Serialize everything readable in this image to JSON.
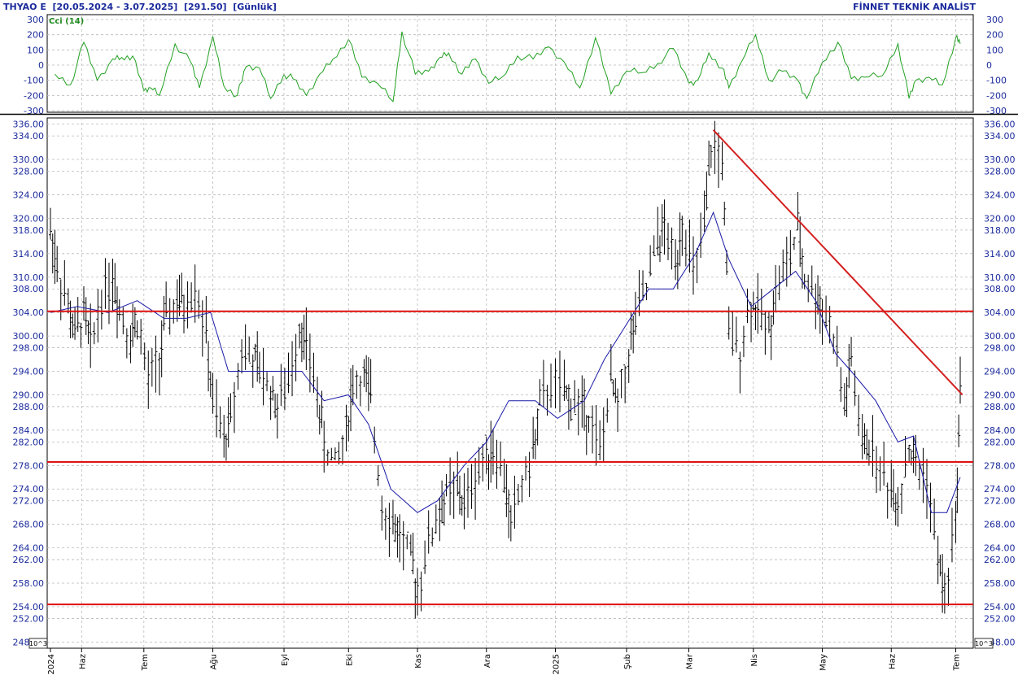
{
  "header": {
    "symbol": "THYAO E",
    "range": "[20.05.2024 - 3.07.2025]",
    "last": "[291.50]",
    "period": "[Günlük]",
    "vendor": "FİNNET TEKNİK ANALİST"
  },
  "colors": {
    "background": "#ffffff",
    "grid": "#b9b9b9",
    "axis_text": "#1a2a9c",
    "price_bars": "#000000",
    "moving_average": "#1a1aa8",
    "support_resistance": "#e01010",
    "trendline": "#d42020",
    "cci_line": "#22a022"
  },
  "chart_data": [
    {
      "type": "line",
      "title": "Cci (14)",
      "y_ticks": [
        "300",
        "200",
        "100",
        "0",
        "-100",
        "-200",
        "-300"
      ],
      "ylim": [
        -300,
        300
      ],
      "series": [
        {
          "name": "Cci (14)",
          "x": [
            "2024-05-22",
            "2024-05-29",
            "2024-06-04",
            "2024-06-10",
            "2024-06-17",
            "2024-06-21",
            "2024-06-26",
            "2024-07-01",
            "2024-07-04",
            "2024-07-08",
            "2024-07-15",
            "2024-07-22",
            "2024-07-26",
            "2024-08-01",
            "2024-08-06",
            "2024-08-12",
            "2024-08-16",
            "2024-08-22",
            "2024-08-27",
            "2024-09-02",
            "2024-09-06",
            "2024-09-12",
            "2024-09-18",
            "2024-09-24",
            "2024-10-01",
            "2024-10-07",
            "2024-10-14",
            "2024-10-21",
            "2024-10-25",
            "2024-10-31",
            "2024-11-06",
            "2024-11-11",
            "2024-11-15",
            "2024-11-21",
            "2024-11-27",
            "2024-12-03",
            "2024-12-09",
            "2024-12-16",
            "2024-12-23",
            "2024-12-30",
            "2025-01-06",
            "2025-01-13",
            "2025-01-20",
            "2025-01-27",
            "2025-02-03",
            "2025-02-10",
            "2025-02-17",
            "2025-02-24",
            "2025-03-03",
            "2025-03-07",
            "2025-03-12",
            "2025-03-18",
            "2025-03-21",
            "2025-03-27",
            "2025-04-02",
            "2025-04-08",
            "2025-04-14",
            "2025-04-21",
            "2025-04-25",
            "2025-05-02",
            "2025-05-09",
            "2025-05-15",
            "2025-05-21",
            "2025-05-29",
            "2025-06-05",
            "2025-06-10",
            "2025-06-13",
            "2025-06-19",
            "2025-06-25",
            "2025-07-01",
            "2025-07-03"
          ],
          "values": [
            -60,
            -130,
            150,
            -100,
            40,
            50,
            60,
            -170,
            -150,
            -200,
            140,
            20,
            -150,
            190,
            -140,
            -200,
            -10,
            -20,
            -220,
            -60,
            -90,
            -200,
            -60,
            40,
            170,
            -80,
            -120,
            -240,
            220,
            -60,
            -40,
            50,
            80,
            -60,
            40,
            -120,
            -80,
            60,
            40,
            120,
            20,
            -150,
            180,
            -190,
            -40,
            -50,
            10,
            110,
            -120,
            -100,
            80,
            -20,
            -150,
            30,
            200,
            -100,
            -40,
            -100,
            -220,
            20,
            150,
            -90,
            -80,
            -70,
            140,
            -220,
            -100,
            -80,
            -130,
            180,
            140
          ]
        }
      ]
    },
    {
      "type": "line",
      "y_ticks": [
        "336.00",
        "334.00",
        "330.00",
        "328.00",
        "324.00",
        "320.00",
        "318.00",
        "314.00",
        "310.00",
        "308.00",
        "304.00",
        "300.00",
        "298.00",
        "294.00",
        "290.00",
        "288.00",
        "284.00",
        "282.00",
        "278.00",
        "274.00",
        "272.00",
        "268.00",
        "264.00",
        "262.00",
        "258.00",
        "254.00",
        "252.00",
        "248.00"
      ],
      "ylim": [
        247.5,
        336.5
      ],
      "x_ticks": [
        "2024",
        "Haz",
        "Tem",
        "Ağu",
        "Eyl",
        "Eki",
        "Kas",
        "Ara",
        "2025",
        "Şub",
        "Mar",
        "Nis",
        "May",
        "Haz",
        "Tem"
      ],
      "y_unit": "10^3",
      "series": [
        {
          "name": "THYAO",
          "x": [
            "2024-05-20",
            "2024-05-23",
            "2024-05-28",
            "2024-05-31",
            "2024-06-04",
            "2024-06-07",
            "2024-06-12",
            "2024-06-17",
            "2024-06-20",
            "2024-06-25",
            "2024-06-28",
            "2024-07-03",
            "2024-07-08",
            "2024-07-11",
            "2024-07-16",
            "2024-07-19",
            "2024-07-24",
            "2024-07-29",
            "2024-08-01",
            "2024-08-06",
            "2024-08-09",
            "2024-08-14",
            "2024-08-19",
            "2024-08-22",
            "2024-08-27",
            "2024-08-30",
            "2024-09-04",
            "2024-09-09",
            "2024-09-12",
            "2024-09-17",
            "2024-09-20",
            "2024-09-25",
            "2024-09-30",
            "2024-10-03",
            "2024-10-08",
            "2024-10-11",
            "2024-10-16",
            "2024-10-21",
            "2024-10-24",
            "2024-10-29",
            "2024-11-01",
            "2024-11-06",
            "2024-11-11",
            "2024-11-14",
            "2024-11-19",
            "2024-11-22",
            "2024-11-27",
            "2024-12-02",
            "2024-12-05",
            "2024-12-10",
            "2024-12-13",
            "2024-12-18",
            "2024-12-23",
            "2024-12-26",
            "2024-12-31",
            "2025-01-06",
            "2025-01-09",
            "2025-01-14",
            "2025-01-17",
            "2025-01-22",
            "2025-01-27",
            "2025-01-30",
            "2025-02-04",
            "2025-02-07",
            "2025-02-12",
            "2025-02-17",
            "2025-02-20",
            "2025-02-25",
            "2025-02-28",
            "2025-03-05",
            "2025-03-10",
            "2025-03-13",
            "2025-03-18",
            "2025-03-21",
            "2025-03-26",
            "2025-03-31",
            "2025-04-03",
            "2025-04-08",
            "2025-04-11",
            "2025-04-16",
            "2025-04-21",
            "2025-04-24",
            "2025-04-29",
            "2025-05-02",
            "2025-05-07",
            "2025-05-12",
            "2025-05-15",
            "2025-05-20",
            "2025-05-23",
            "2025-05-28",
            "2025-06-02",
            "2025-06-05",
            "2025-06-10",
            "2025-06-13",
            "2025-06-18",
            "2025-06-23",
            "2025-06-26",
            "2025-07-01",
            "2025-07-03"
          ],
          "close": [
            318,
            312,
            305,
            300,
            304,
            298,
            307,
            310,
            305,
            300,
            303,
            292,
            296,
            303,
            306,
            305,
            309,
            300,
            288,
            282,
            286,
            298,
            296,
            294,
            291,
            288,
            292,
            302,
            298,
            290,
            282,
            278,
            284,
            292,
            293,
            289,
            272,
            268,
            266,
            262,
            257,
            265,
            270,
            273,
            274,
            271,
            276,
            280,
            281,
            276,
            268,
            275,
            280,
            288,
            292,
            290,
            289,
            288,
            287,
            280,
            292,
            288,
            297,
            303,
            308,
            316,
            318,
            312,
            320,
            310,
            318,
            332,
            330,
            300,
            298,
            306,
            304,
            301,
            308,
            312,
            318,
            310,
            307,
            305,
            300,
            288,
            296,
            281,
            282,
            277,
            274,
            272,
            281,
            278,
            276,
            262,
            256,
            268,
            291.5
          ]
        },
        {
          "name": "moving_average",
          "x": [
            "2024-05-20",
            "2024-06-01",
            "2024-06-15",
            "2024-06-28",
            "2024-07-10",
            "2024-07-20",
            "2024-07-31",
            "2024-08-08",
            "2024-08-20",
            "2024-09-01",
            "2024-09-10",
            "2024-09-20",
            "2024-10-01",
            "2024-10-10",
            "2024-10-20",
            "2024-11-01",
            "2024-11-10",
            "2024-11-22",
            "2024-12-02",
            "2024-12-12",
            "2024-12-24",
            "2025-01-03",
            "2025-01-15",
            "2025-01-24",
            "2025-02-03",
            "2025-02-13",
            "2025-02-24",
            "2025-03-06",
            "2025-03-14",
            "2025-03-21",
            "2025-03-31",
            "2025-04-10",
            "2025-04-20",
            "2025-04-29",
            "2025-05-08",
            "2025-05-15",
            "2025-05-26",
            "2025-06-05",
            "2025-06-12",
            "2025-06-20",
            "2025-06-27",
            "2025-07-03"
          ],
          "values": [
            304,
            305,
            304,
            306,
            303,
            303,
            304,
            294,
            294,
            294,
            294,
            289,
            290,
            285,
            274,
            270,
            272,
            278,
            282,
            289,
            289,
            286,
            289,
            296,
            302,
            308,
            308,
            314,
            321,
            313,
            305,
            308,
            311,
            306,
            297,
            294,
            289,
            282,
            283,
            270,
            270,
            276
          ]
        }
      ],
      "horizontal_lines": [
        304.2,
        278.6,
        254.4
      ],
      "trendline": {
        "from": [
          "2025-03-14",
          335
        ],
        "to": [
          "2025-07-04",
          290
        ]
      }
    }
  ]
}
